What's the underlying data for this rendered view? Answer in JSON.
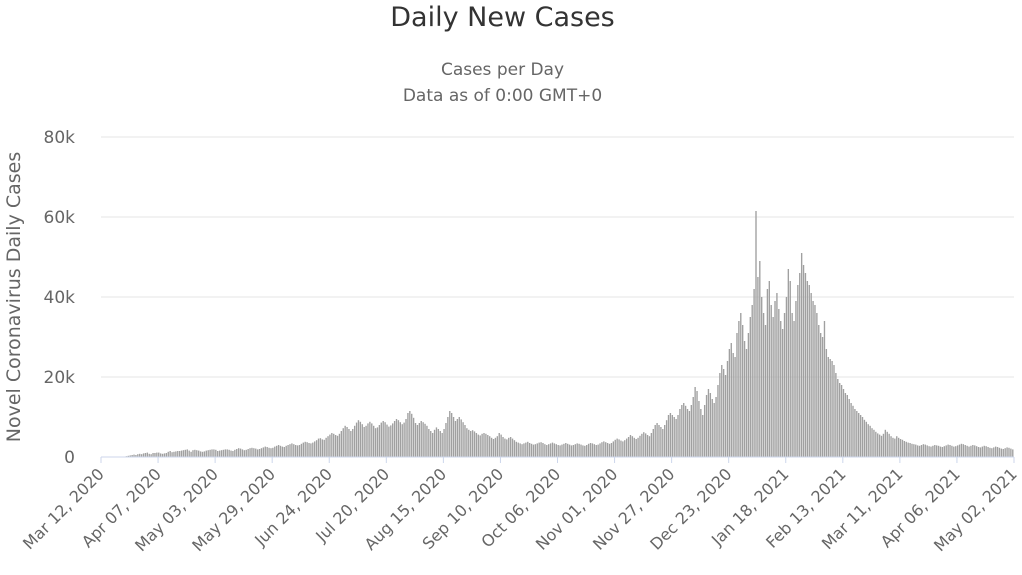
{
  "chart_data": {
    "type": "bar",
    "title": "Daily New Cases",
    "subtitle": [
      "Cases per Day",
      "Data as of 0:00 GMT+0"
    ],
    "ylabel": "Novel Coronavirus Daily Cases",
    "ylim": [
      0,
      80000
    ],
    "yticks": [
      0,
      20000,
      40000,
      60000,
      80000
    ],
    "ytick_labels": [
      "0",
      "20k",
      "40k",
      "60k",
      "80k"
    ],
    "xtick_labels": [
      "Mar 12, 2020",
      "Apr 07, 2020",
      "May 03, 2020",
      "May 29, 2020",
      "Jun 24, 2020",
      "Jul 20, 2020",
      "Aug 15, 2020",
      "Sep 10, 2020",
      "Oct 06, 2020",
      "Nov 01, 2020",
      "Nov 27, 2020",
      "Dec 23, 2020",
      "Jan 18, 2021",
      "Feb 13, 2021",
      "Mar 11, 2021",
      "Apr 06, 2021",
      "May 02, 2021"
    ],
    "start_date": "Mar 12, 2020",
    "end_date": "May 02, 2021",
    "series": [
      {
        "name": "Daily Cases",
        "color": "#a0a0a0",
        "values": [
          0,
          0,
          0,
          0,
          0,
          0,
          0,
          0,
          0,
          0,
          0,
          0,
          100,
          200,
          300,
          400,
          500,
          600,
          500,
          700,
          800,
          700,
          900,
          1000,
          1100,
          800,
          700,
          1000,
          1000,
          1100,
          1100,
          900,
          800,
          900,
          1000,
          1300,
          1500,
          1200,
          1300,
          1400,
          1500,
          1500,
          1600,
          1700,
          1800,
          1900,
          1600,
          1300,
          1700,
          1800,
          1700,
          1600,
          1400,
          1300,
          1400,
          1600,
          1700,
          1800,
          1900,
          1900,
          1800,
          1500,
          1600,
          1700,
          1800,
          1900,
          1900,
          1800,
          1600,
          1500,
          1800,
          2000,
          2200,
          2100,
          1900,
          1700,
          1800,
          2000,
          2200,
          2300,
          2200,
          2100,
          1900,
          2000,
          2200,
          2400,
          2600,
          2500,
          2300,
          2200,
          2300,
          2600,
          2800,
          3000,
          2800,
          2600,
          2500,
          2800,
          3000,
          3200,
          3400,
          3200,
          3000,
          2900,
          3000,
          3300,
          3600,
          3800,
          3700,
          3500,
          3400,
          3600,
          3900,
          4200,
          4600,
          4700,
          4400,
          4300,
          4800,
          5200,
          5600,
          6000,
          5800,
          5500,
          5300,
          5800,
          6500,
          7200,
          7800,
          7500,
          7000,
          6500,
          7000,
          7800,
          8600,
          9200,
          8800,
          8200,
          7500,
          7800,
          8400,
          8800,
          8400,
          7800,
          7200,
          7400,
          8000,
          8600,
          9000,
          8700,
          8100,
          7600,
          7900,
          8400,
          9000,
          9500,
          9200,
          8700,
          8200,
          8600,
          9500,
          11000,
          11500,
          10800,
          9800,
          8500,
          8000,
          8500,
          9000,
          8700,
          8300,
          7800,
          7000,
          6500,
          6000,
          6800,
          7400,
          7000,
          6500,
          6000,
          7000,
          8500,
          10000,
          11500,
          11000,
          10000,
          9000,
          9500,
          10000,
          9400,
          8700,
          8000,
          7200,
          6800,
          6500,
          6700,
          6400,
          6000,
          5600,
          5400,
          5800,
          6000,
          5800,
          5500,
          5200,
          4800,
          4500,
          4800,
          5200,
          6000,
          5600,
          5000,
          4600,
          4400,
          4800,
          5000,
          4600,
          4200,
          3800,
          3600,
          3400,
          3200,
          3400,
          3600,
          3800,
          3500,
          3300,
          3100,
          3200,
          3400,
          3600,
          3700,
          3500,
          3200,
          3000,
          3200,
          3400,
          3600,
          3400,
          3200,
          3000,
          2900,
          3100,
          3300,
          3500,
          3300,
          3100,
          2900,
          3000,
          3200,
          3400,
          3300,
          3100,
          2900,
          2800,
          3000,
          3300,
          3500,
          3400,
          3200,
          3000,
          3100,
          3400,
          3700,
          3900,
          3700,
          3500,
          3300,
          3500,
          3900,
          4300,
          4600,
          4400,
          4100,
          3900,
          4200,
          4600,
          5000,
          5500,
          5200,
          4800,
          4500,
          4800,
          5300,
          5800,
          6200,
          5900,
          5500,
          5200,
          6000,
          7000,
          8000,
          8500,
          8000,
          7500,
          7000,
          8000,
          9200,
          10500,
          11000,
          10500,
          10000,
          9500,
          10500,
          12000,
          13000,
          13500,
          12800,
          12000,
          11500,
          13000,
          15000,
          17500,
          16500,
          14000,
          12000,
          10500,
          13000,
          15500,
          17000,
          16000,
          14500,
          13500,
          15000,
          18000,
          21000,
          23000,
          22000,
          20500,
          24000,
          27000,
          28500,
          26000,
          25000,
          31000,
          34000,
          36000,
          33000,
          29000,
          27000,
          31000,
          35000,
          38000,
          42000,
          61500,
          45000,
          49000,
          40000,
          36000,
          33000,
          42000,
          44000,
          38000,
          35000,
          39000,
          41000,
          37000,
          34000,
          32000,
          36000,
          40000,
          47000,
          44000,
          36000,
          34000,
          39000,
          43000,
          46000,
          51000,
          48000,
          46000,
          44000,
          43000,
          41000,
          39000,
          38000,
          36000,
          33000,
          31000,
          30000,
          34000,
          27000,
          25000,
          24500,
          24000,
          23000,
          21000,
          19500,
          18500,
          18000,
          17000,
          16000,
          15500,
          14500,
          13500,
          12800,
          12000,
          11500,
          11000,
          10500,
          10000,
          9300,
          8800,
          8200,
          7800,
          7200,
          6800,
          6300,
          5900,
          5600,
          5300,
          5800,
          6800,
          6300,
          5800,
          5200,
          4800,
          4600,
          5200,
          4800,
          4500,
          4300,
          4000,
          3800,
          3600,
          3500,
          3300,
          3200,
          3100,
          2900,
          2800,
          3000,
          3200,
          3100,
          2900,
          2700,
          2600,
          2800,
          3000,
          2900,
          2800,
          2600,
          2500,
          2700,
          2900,
          3100,
          3000,
          2800,
          2600,
          2700,
          2900,
          3100,
          3300,
          3200,
          3000,
          2800,
          2600,
          2800,
          3000,
          2900,
          2700,
          2500,
          2400,
          2600,
          2800,
          2700,
          2500,
          2300,
          2200,
          2400,
          2600,
          2500,
          2300,
          2100,
          2000,
          2200,
          2400,
          2300,
          2100,
          1900
        ]
      }
    ],
    "grid": true,
    "legend": "none"
  }
}
